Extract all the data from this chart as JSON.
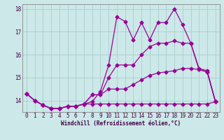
{
  "title": "",
  "xlabel": "Windchill (Refroidissement éolien,°C)",
  "x": [
    0,
    1,
    2,
    3,
    4,
    5,
    6,
    7,
    8,
    9,
    10,
    11,
    12,
    13,
    14,
    15,
    16,
    17,
    18,
    19,
    20,
    21,
    22,
    23
  ],
  "line1": [
    14.3,
    14.0,
    13.8,
    13.65,
    13.65,
    13.75,
    13.75,
    13.85,
    13.95,
    14.4,
    15.55,
    17.65,
    17.45,
    16.65,
    17.4,
    16.65,
    17.4,
    17.4,
    18.0,
    17.3,
    16.5,
    15.4,
    15.3,
    13.95
  ],
  "line2": [
    14.3,
    14.0,
    13.8,
    13.65,
    13.65,
    13.75,
    13.75,
    13.85,
    14.25,
    14.25,
    15.0,
    15.55,
    15.55,
    15.55,
    16.0,
    16.35,
    16.5,
    16.5,
    16.6,
    16.5,
    16.5,
    15.35,
    15.25,
    13.95
  ],
  "line3": [
    14.3,
    14.0,
    13.8,
    13.65,
    13.65,
    13.75,
    13.75,
    13.85,
    14.25,
    14.25,
    14.5,
    14.5,
    14.5,
    14.7,
    14.9,
    15.1,
    15.2,
    15.25,
    15.3,
    15.4,
    15.4,
    15.35,
    15.25,
    13.95
  ],
  "line4": [
    14.3,
    14.0,
    13.8,
    13.65,
    13.65,
    13.75,
    13.75,
    13.85,
    13.85,
    13.85,
    13.85,
    13.85,
    13.85,
    13.85,
    13.85,
    13.85,
    13.85,
    13.85,
    13.85,
    13.85,
    13.85,
    13.85,
    13.85,
    13.95
  ],
  "line_color": "#990099",
  "bg_color": "#cce8e8",
  "grid_color": "#aacece",
  "ylim": [
    13.5,
    18.2
  ],
  "xlim": [
    -0.5,
    23.5
  ],
  "yticks": [
    14,
    15,
    16,
    17,
    18
  ],
  "xticks": [
    0,
    1,
    2,
    3,
    4,
    5,
    6,
    7,
    8,
    9,
    10,
    11,
    12,
    13,
    14,
    15,
    16,
    17,
    18,
    19,
    20,
    21,
    22,
    23
  ]
}
